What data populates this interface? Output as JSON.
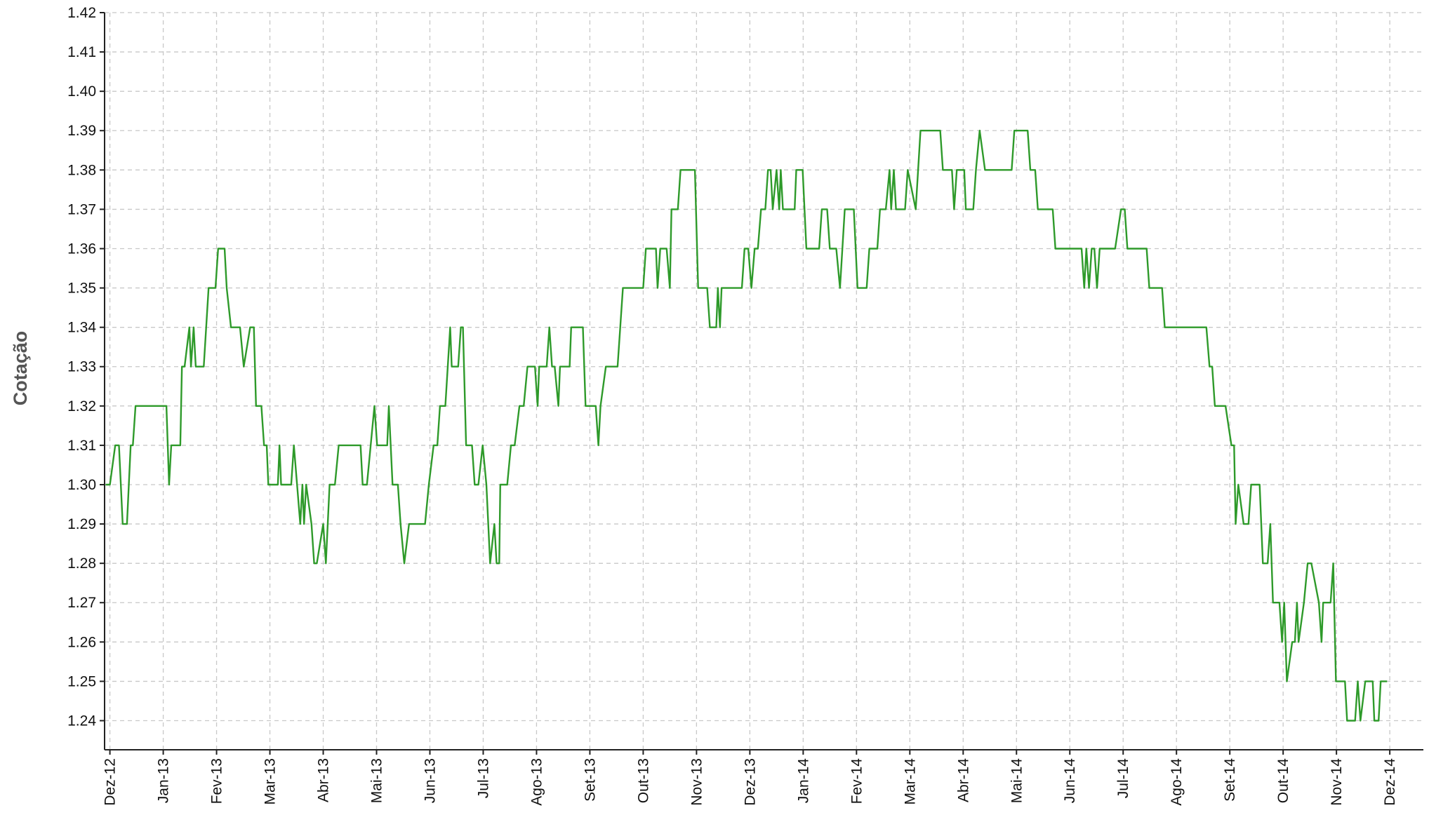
{
  "chart_data": {
    "type": "line",
    "y_label": "Cotação",
    "color": "#2e9a2a",
    "grid": true,
    "ylim": [
      1.2326,
      1.42
    ],
    "yticks": [
      1.24,
      1.25,
      1.26,
      1.27,
      1.28,
      1.29,
      {
        "value": 1.3,
        "label": "1.30"
      },
      1.31,
      1.32,
      1.33,
      1.34,
      1.35,
      1.36,
      1.37,
      1.38,
      1.39,
      {
        "value": 1.4,
        "label": "1.40"
      },
      1.41,
      1.42
    ],
    "xlim": [
      -0.1,
      24.63
    ],
    "xticks": [
      {
        "value": 0,
        "label": "Dez-12"
      },
      {
        "value": 1,
        "label": "Jan-13"
      },
      {
        "value": 2,
        "label": "Fev-13"
      },
      {
        "value": 3,
        "label": "Mar-13"
      },
      {
        "value": 4,
        "label": "Abr-13"
      },
      {
        "value": 5,
        "label": "Mai-13"
      },
      {
        "value": 6,
        "label": "Jun-13"
      },
      {
        "value": 7,
        "label": "Jul-13"
      },
      {
        "value": 8,
        "label": "Ago-13"
      },
      {
        "value": 9,
        "label": "Set-13"
      },
      {
        "value": 10,
        "label": "Out-13"
      },
      {
        "value": 11,
        "label": "Nov-13"
      },
      {
        "value": 12,
        "label": "Dez-13"
      },
      {
        "value": 13,
        "label": "Jan-14"
      },
      {
        "value": 14,
        "label": "Fev-14"
      },
      {
        "value": 15,
        "label": "Mar-14"
      },
      {
        "value": 16,
        "label": "Abr-14"
      },
      {
        "value": 17,
        "label": "Mai-14"
      },
      {
        "value": 18,
        "label": "Jun-14"
      },
      {
        "value": 19,
        "label": "Jul-14"
      },
      {
        "value": 20,
        "label": "Ago-14"
      },
      {
        "value": 21,
        "label": "Set-14"
      },
      {
        "value": 22,
        "label": "Out-14"
      },
      {
        "value": 23,
        "label": "Nov-14"
      },
      {
        "value": 24,
        "label": "Dez-14"
      }
    ],
    "x": [
      -0.08,
      0,
      0.1,
      0.17,
      0.24,
      0.32,
      0.39,
      0.43,
      0.48,
      1.06,
      1.11,
      1.15,
      1.32,
      1.35,
      1.4,
      1.49,
      1.52,
      1.57,
      1.61,
      1.76,
      1.85,
      1.98,
      2.03,
      2.15,
      2.19,
      2.27,
      2.44,
      2.51,
      2.63,
      2.7,
      2.74,
      2.84,
      2.89,
      2.94,
      2.97,
      3.15,
      3.18,
      3.21,
      3.4,
      3.45,
      3.57,
      3.61,
      3.64,
      3.68,
      3.78,
      3.83,
      3.88,
      4.0,
      4.05,
      4.12,
      4.22,
      4.29,
      4.7,
      4.74,
      4.82,
      4.96,
      5.01,
      5.2,
      5.23,
      5.3,
      5.4,
      5.45,
      5.52,
      5.61,
      5.91,
      5.98,
      6.07,
      6.14,
      6.19,
      6.29,
      6.38,
      6.41,
      6.53,
      6.58,
      6.62,
      6.68,
      6.79,
      6.84,
      6.91,
      6.99,
      7.06,
      7.13,
      7.21,
      7.25,
      7.3,
      7.32,
      7.45,
      7.52,
      7.59,
      7.68,
      7.76,
      7.83,
      7.97,
      8.02,
      8.05,
      8.19,
      8.24,
      8.29,
      8.34,
      8.41,
      8.44,
      8.62,
      8.65,
      8.87,
      8.92,
      9.11,
      9.16,
      9.2,
      9.3,
      9.52,
      9.57,
      9.62,
      10.0,
      10.05,
      10.24,
      10.27,
      10.32,
      10.44,
      10.5,
      10.53,
      10.65,
      10.7,
      10.97,
      11.03,
      11.2,
      11.25,
      11.37,
      11.4,
      11.44,
      11.47,
      11.85,
      11.9,
      11.97,
      12.03,
      12.09,
      12.15,
      12.21,
      12.29,
      12.34,
      12.39,
      12.43,
      12.5,
      12.55,
      12.58,
      12.62,
      12.84,
      12.87,
      12.99,
      13.06,
      13.3,
      13.35,
      13.45,
      13.5,
      13.62,
      13.69,
      13.78,
      13.95,
      14.02,
      14.19,
      14.24,
      14.39,
      14.44,
      14.55,
      14.62,
      14.65,
      14.7,
      14.74,
      14.91,
      14.96,
      15.11,
      15.2,
      15.57,
      15.62,
      15.79,
      15.83,
      15.88,
      16.02,
      16.05,
      16.19,
      16.24,
      16.31,
      16.41,
      16.91,
      16.96,
      17.21,
      17.26,
      17.35,
      17.4,
      17.68,
      17.73,
      18.22,
      18.27,
      18.31,
      18.36,
      18.41,
      18.46,
      18.51,
      18.56,
      18.85,
      18.96,
      19.03,
      19.08,
      19.44,
      19.49,
      19.73,
      19.78,
      20.56,
      20.62,
      20.67,
      20.72,
      20.92,
      21.03,
      21.08,
      21.11,
      21.16,
      21.26,
      21.35,
      21.4,
      21.56,
      21.62,
      21.71,
      21.76,
      21.81,
      21.93,
      21.98,
      22.02,
      22.07,
      22.17,
      22.22,
      22.26,
      22.29,
      22.39,
      22.46,
      22.53,
      22.67,
      22.72,
      22.75,
      22.89,
      22.94,
      22.99,
      23.16,
      23.2,
      23.35,
      23.4,
      23.45,
      23.54,
      23.68,
      23.71,
      23.79,
      23.83,
      23.95
    ],
    "values": [
      1.3,
      1.3,
      1.31,
      1.31,
      1.29,
      1.29,
      1.31,
      1.31,
      1.32,
      1.32,
      1.3,
      1.31,
      1.31,
      1.33,
      1.33,
      1.34,
      1.33,
      1.34,
      1.33,
      1.33,
      1.35,
      1.35,
      1.36,
      1.36,
      1.35,
      1.34,
      1.34,
      1.33,
      1.34,
      1.34,
      1.32,
      1.32,
      1.31,
      1.31,
      1.3,
      1.3,
      1.31,
      1.3,
      1.3,
      1.31,
      1.29,
      1.3,
      1.29,
      1.3,
      1.29,
      1.28,
      1.28,
      1.29,
      1.28,
      1.3,
      1.3,
      1.31,
      1.31,
      1.3,
      1.3,
      1.32,
      1.31,
      1.31,
      1.32,
      1.3,
      1.3,
      1.29,
      1.28,
      1.29,
      1.29,
      1.3,
      1.31,
      1.31,
      1.32,
      1.32,
      1.34,
      1.33,
      1.33,
      1.34,
      1.34,
      1.31,
      1.31,
      1.3,
      1.3,
      1.31,
      1.3,
      1.28,
      1.29,
      1.28,
      1.28,
      1.3,
      1.3,
      1.31,
      1.31,
      1.32,
      1.32,
      1.33,
      1.33,
      1.32,
      1.33,
      1.33,
      1.34,
      1.33,
      1.33,
      1.32,
      1.33,
      1.33,
      1.34,
      1.34,
      1.32,
      1.32,
      1.31,
      1.32,
      1.33,
      1.33,
      1.34,
      1.35,
      1.35,
      1.36,
      1.36,
      1.35,
      1.36,
      1.36,
      1.35,
      1.37,
      1.37,
      1.38,
      1.38,
      1.35,
      1.35,
      1.34,
      1.34,
      1.35,
      1.34,
      1.35,
      1.35,
      1.36,
      1.36,
      1.35,
      1.36,
      1.36,
      1.37,
      1.37,
      1.38,
      1.38,
      1.37,
      1.38,
      1.37,
      1.38,
      1.37,
      1.37,
      1.38,
      1.38,
      1.36,
      1.36,
      1.37,
      1.37,
      1.36,
      1.36,
      1.35,
      1.37,
      1.37,
      1.35,
      1.35,
      1.36,
      1.36,
      1.37,
      1.37,
      1.38,
      1.37,
      1.38,
      1.37,
      1.37,
      1.38,
      1.37,
      1.39,
      1.39,
      1.38,
      1.38,
      1.37,
      1.38,
      1.38,
      1.37,
      1.37,
      1.38,
      1.39,
      1.38,
      1.38,
      1.39,
      1.39,
      1.38,
      1.38,
      1.37,
      1.37,
      1.36,
      1.36,
      1.35,
      1.36,
      1.35,
      1.36,
      1.36,
      1.35,
      1.36,
      1.36,
      1.37,
      1.37,
      1.36,
      1.36,
      1.35,
      1.35,
      1.34,
      1.34,
      1.33,
      1.33,
      1.32,
      1.32,
      1.31,
      1.31,
      1.29,
      1.3,
      1.29,
      1.29,
      1.3,
      1.3,
      1.28,
      1.28,
      1.29,
      1.27,
      1.27,
      1.26,
      1.27,
      1.25,
      1.26,
      1.26,
      1.27,
      1.26,
      1.27,
      1.28,
      1.28,
      1.27,
      1.26,
      1.27,
      1.27,
      1.28,
      1.25,
      1.25,
      1.24,
      1.24,
      1.25,
      1.24,
      1.25,
      1.25,
      1.24,
      1.24,
      1.25,
      1.25
    ]
  }
}
